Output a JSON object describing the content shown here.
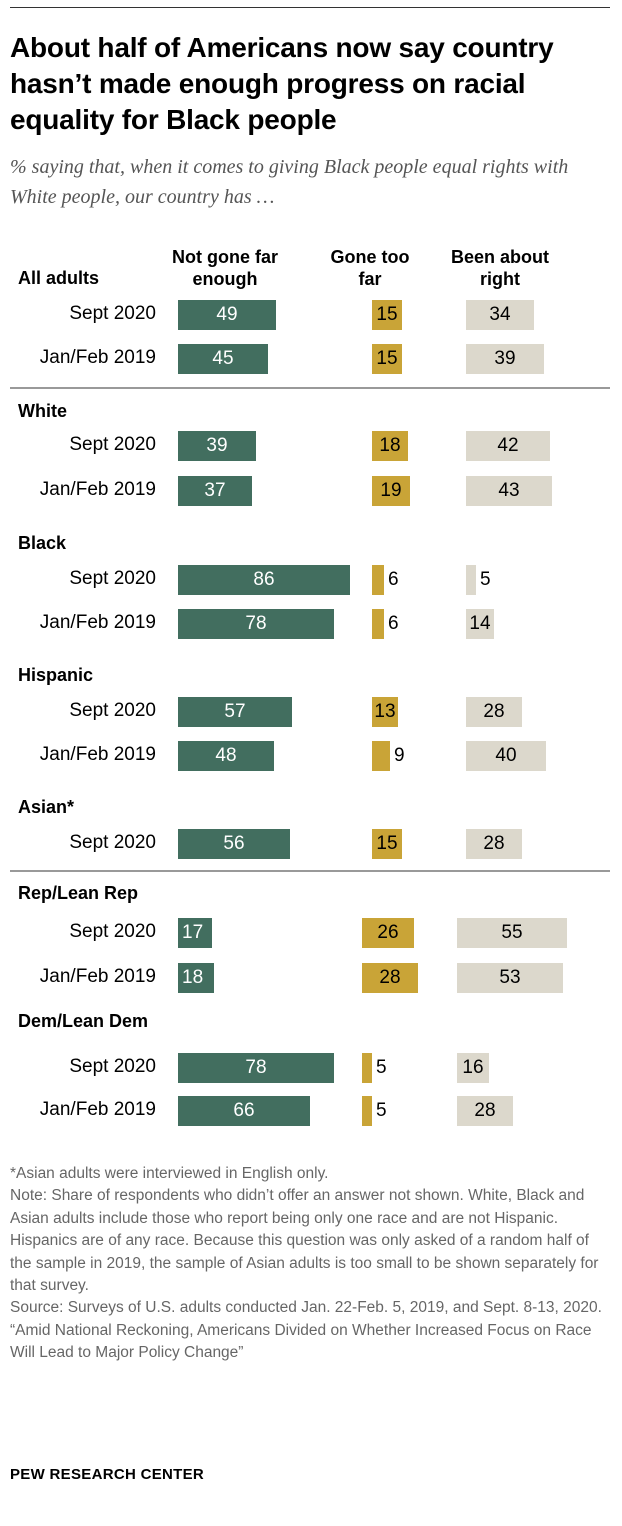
{
  "title": "About half of Americans now say country hasn’t made enough progress on racial equality for Black people",
  "subtitle": "% saying that, when it comes to giving Black people equal rights with White people, our country has …",
  "chart_data": {
    "type": "bar",
    "orientation": "horizontal",
    "series": [
      {
        "name": "Not gone far enough",
        "color": "#426e5f"
      },
      {
        "name": "Gone too far",
        "color": "#c9a437"
      },
      {
        "name": "Been about right",
        "color": "#dcd8cc"
      }
    ],
    "groups": [
      {
        "name": "All adults",
        "rows": [
          {
            "label": "Sept 2020",
            "values": [
              49,
              15,
              34
            ]
          },
          {
            "label": "Jan/Feb 2019",
            "values": [
              45,
              15,
              39
            ]
          }
        ]
      },
      {
        "name": "White",
        "rows": [
          {
            "label": "Sept 2020",
            "values": [
              39,
              18,
              42
            ]
          },
          {
            "label": "Jan/Feb 2019",
            "values": [
              37,
              19,
              43
            ]
          }
        ]
      },
      {
        "name": "Black",
        "rows": [
          {
            "label": "Sept 2020",
            "values": [
              86,
              6,
              5
            ]
          },
          {
            "label": "Jan/Feb 2019",
            "values": [
              78,
              6,
              14
            ]
          }
        ]
      },
      {
        "name": "Hispanic",
        "rows": [
          {
            "label": "Sept 2020",
            "values": [
              57,
              13,
              28
            ]
          },
          {
            "label": "Jan/Feb 2019",
            "values": [
              48,
              9,
              40
            ]
          }
        ]
      },
      {
        "name": "Asian*",
        "rows": [
          {
            "label": "Sept 2020",
            "values": [
              56,
              15,
              28
            ]
          }
        ]
      },
      {
        "name": "Rep/Lean Rep",
        "rows": [
          {
            "label": "Sept 2020",
            "values": [
              17,
              26,
              55
            ]
          },
          {
            "label": "Jan/Feb 2019",
            "values": [
              18,
              28,
              53
            ]
          }
        ]
      },
      {
        "name": "Dem/Lean Dem",
        "rows": [
          {
            "label": "Sept 2020",
            "values": [
              78,
              5,
              16
            ]
          },
          {
            "label": "Jan/Feb 2019",
            "values": [
              66,
              5,
              28
            ]
          }
        ]
      }
    ]
  },
  "notes": [
    "*Asian adults were interviewed in English only.",
    "Note: Share of respondents who didn’t offer an answer not shown. White, Black and Asian adults include those who report being only one race and are not Hispanic. Hispanics are of any race. Because this question was only asked of a random half of the sample in 2019, the sample of Asian adults is too small to be shown separately for that survey.",
    "Source: Surveys of U.S. adults conducted Jan. 22-Feb. 5, 2019, and Sept. 8-13, 2020.",
    "“Amid National Reckoning, Americans Divided on Whether Increased Focus on Race Will Lead to Major Policy Change”"
  ],
  "source_label": "PEW RESEARCH CENTER"
}
